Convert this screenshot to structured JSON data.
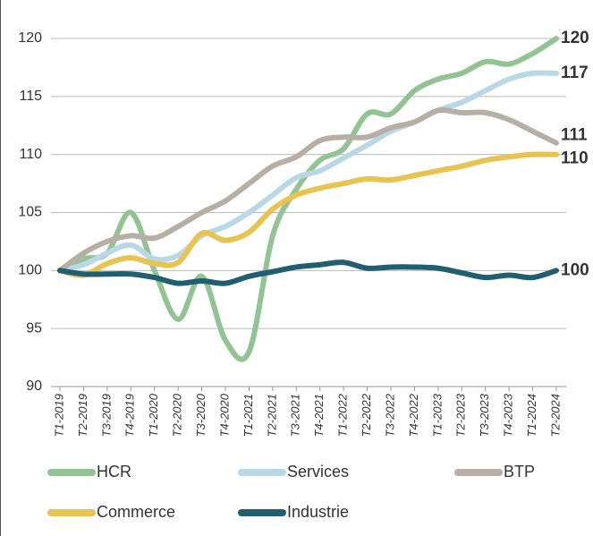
{
  "chart_data": {
    "type": "line",
    "categories": [
      "T1-2019",
      "T2-2019",
      "T3-2019",
      "T4-2019",
      "T1-2020",
      "T2-2020",
      "T3-2020",
      "T4-2020",
      "T1-2021",
      "T2-2021",
      "T3-2021",
      "T4-2021",
      "T1-2022",
      "T2-2022",
      "T3-2022",
      "T4-2022",
      "T1-2023",
      "T2-2023",
      "T3-2023",
      "T4-2023",
      "T1-2024",
      "T2-2024"
    ],
    "series": [
      {
        "name": "HCR",
        "color": "#92c393",
        "values": [
          100,
          101,
          101.5,
          105,
          100,
          95.8,
          99.5,
          94,
          93,
          103,
          107,
          109.5,
          110.5,
          113.5,
          113.5,
          115.5,
          116.5,
          117,
          118,
          117.8,
          118.7,
          120
        ]
      },
      {
        "name": "Services",
        "color": "#b9d8e5",
        "values": [
          100,
          100.5,
          101.5,
          102.2,
          101,
          101.3,
          103,
          103.8,
          105,
          106.5,
          108,
          108.6,
          109.7,
          110.8,
          112,
          112.8,
          113.8,
          114.5,
          115.5,
          116.5,
          117,
          117
        ]
      },
      {
        "name": "BTP",
        "color": "#b7afa4",
        "values": [
          100,
          101.5,
          102.5,
          103,
          102.8,
          103.8,
          105,
          106,
          107.5,
          109,
          109.8,
          111.2,
          111.5,
          111.5,
          112.3,
          112.8,
          113.8,
          113.6,
          113.6,
          113,
          112,
          111
        ]
      },
      {
        "name": "Commerce",
        "color": "#e8c34f",
        "values": [
          100,
          99.6,
          100.6,
          101.1,
          100.6,
          100.7,
          103.2,
          102.6,
          103.3,
          105.3,
          106.5,
          107.1,
          107.5,
          107.9,
          107.8,
          108.2,
          108.6,
          109,
          109.5,
          109.8,
          110,
          110
        ]
      },
      {
        "name": "Industrie",
        "color": "#215e6e",
        "values": [
          100,
          99.7,
          99.7,
          99.7,
          99.4,
          98.9,
          99.1,
          98.9,
          99.5,
          99.9,
          100.3,
          100.5,
          100.7,
          100.2,
          100.3,
          100.3,
          100.2,
          99.8,
          99.4,
          99.6,
          99.4,
          100
        ]
      }
    ],
    "ylim": [
      90,
      120
    ],
    "yticks": [
      90,
      95,
      100,
      105,
      110,
      115,
      120
    ],
    "grid": true
  }
}
